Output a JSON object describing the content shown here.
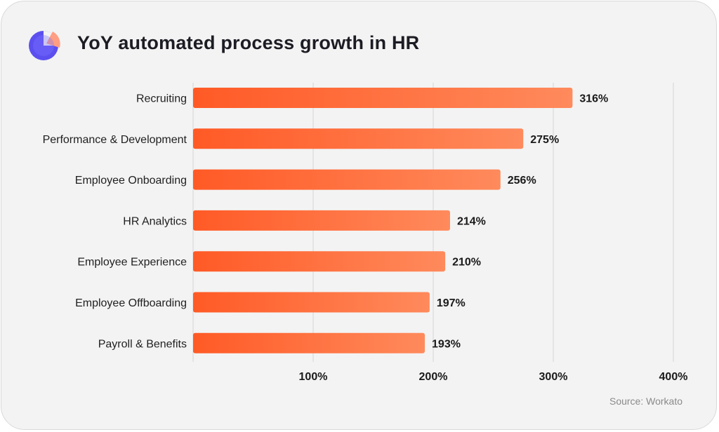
{
  "header": {
    "title": "YoY automated process growth in HR",
    "icon": "pie-chart-icon"
  },
  "source": "Source: Workato",
  "colors": {
    "bar_start": "#ff5a26",
    "bar_end": "#ff8a5c",
    "icon_primary": "#5b4ff0",
    "icon_accent": "#ff9e82"
  },
  "chart_data": {
    "type": "bar",
    "orientation": "horizontal",
    "title": "YoY automated process growth in HR",
    "categories": [
      "Recruiting",
      "Performance & Development",
      "Employee Onboarding",
      "HR Analytics",
      "Employee Experience",
      "Employee Offboarding",
      "Payroll & Benefits"
    ],
    "values": [
      316,
      275,
      256,
      214,
      210,
      197,
      193
    ],
    "value_labels": [
      "316%",
      "275%",
      "256%",
      "214%",
      "210%",
      "197%",
      "193%"
    ],
    "x_ticks": [
      100,
      200,
      300,
      400
    ],
    "x_tick_labels": [
      "100%",
      "200%",
      "300%",
      "400%"
    ],
    "xlim": [
      0,
      400
    ],
    "grid": true,
    "legend": "none"
  }
}
